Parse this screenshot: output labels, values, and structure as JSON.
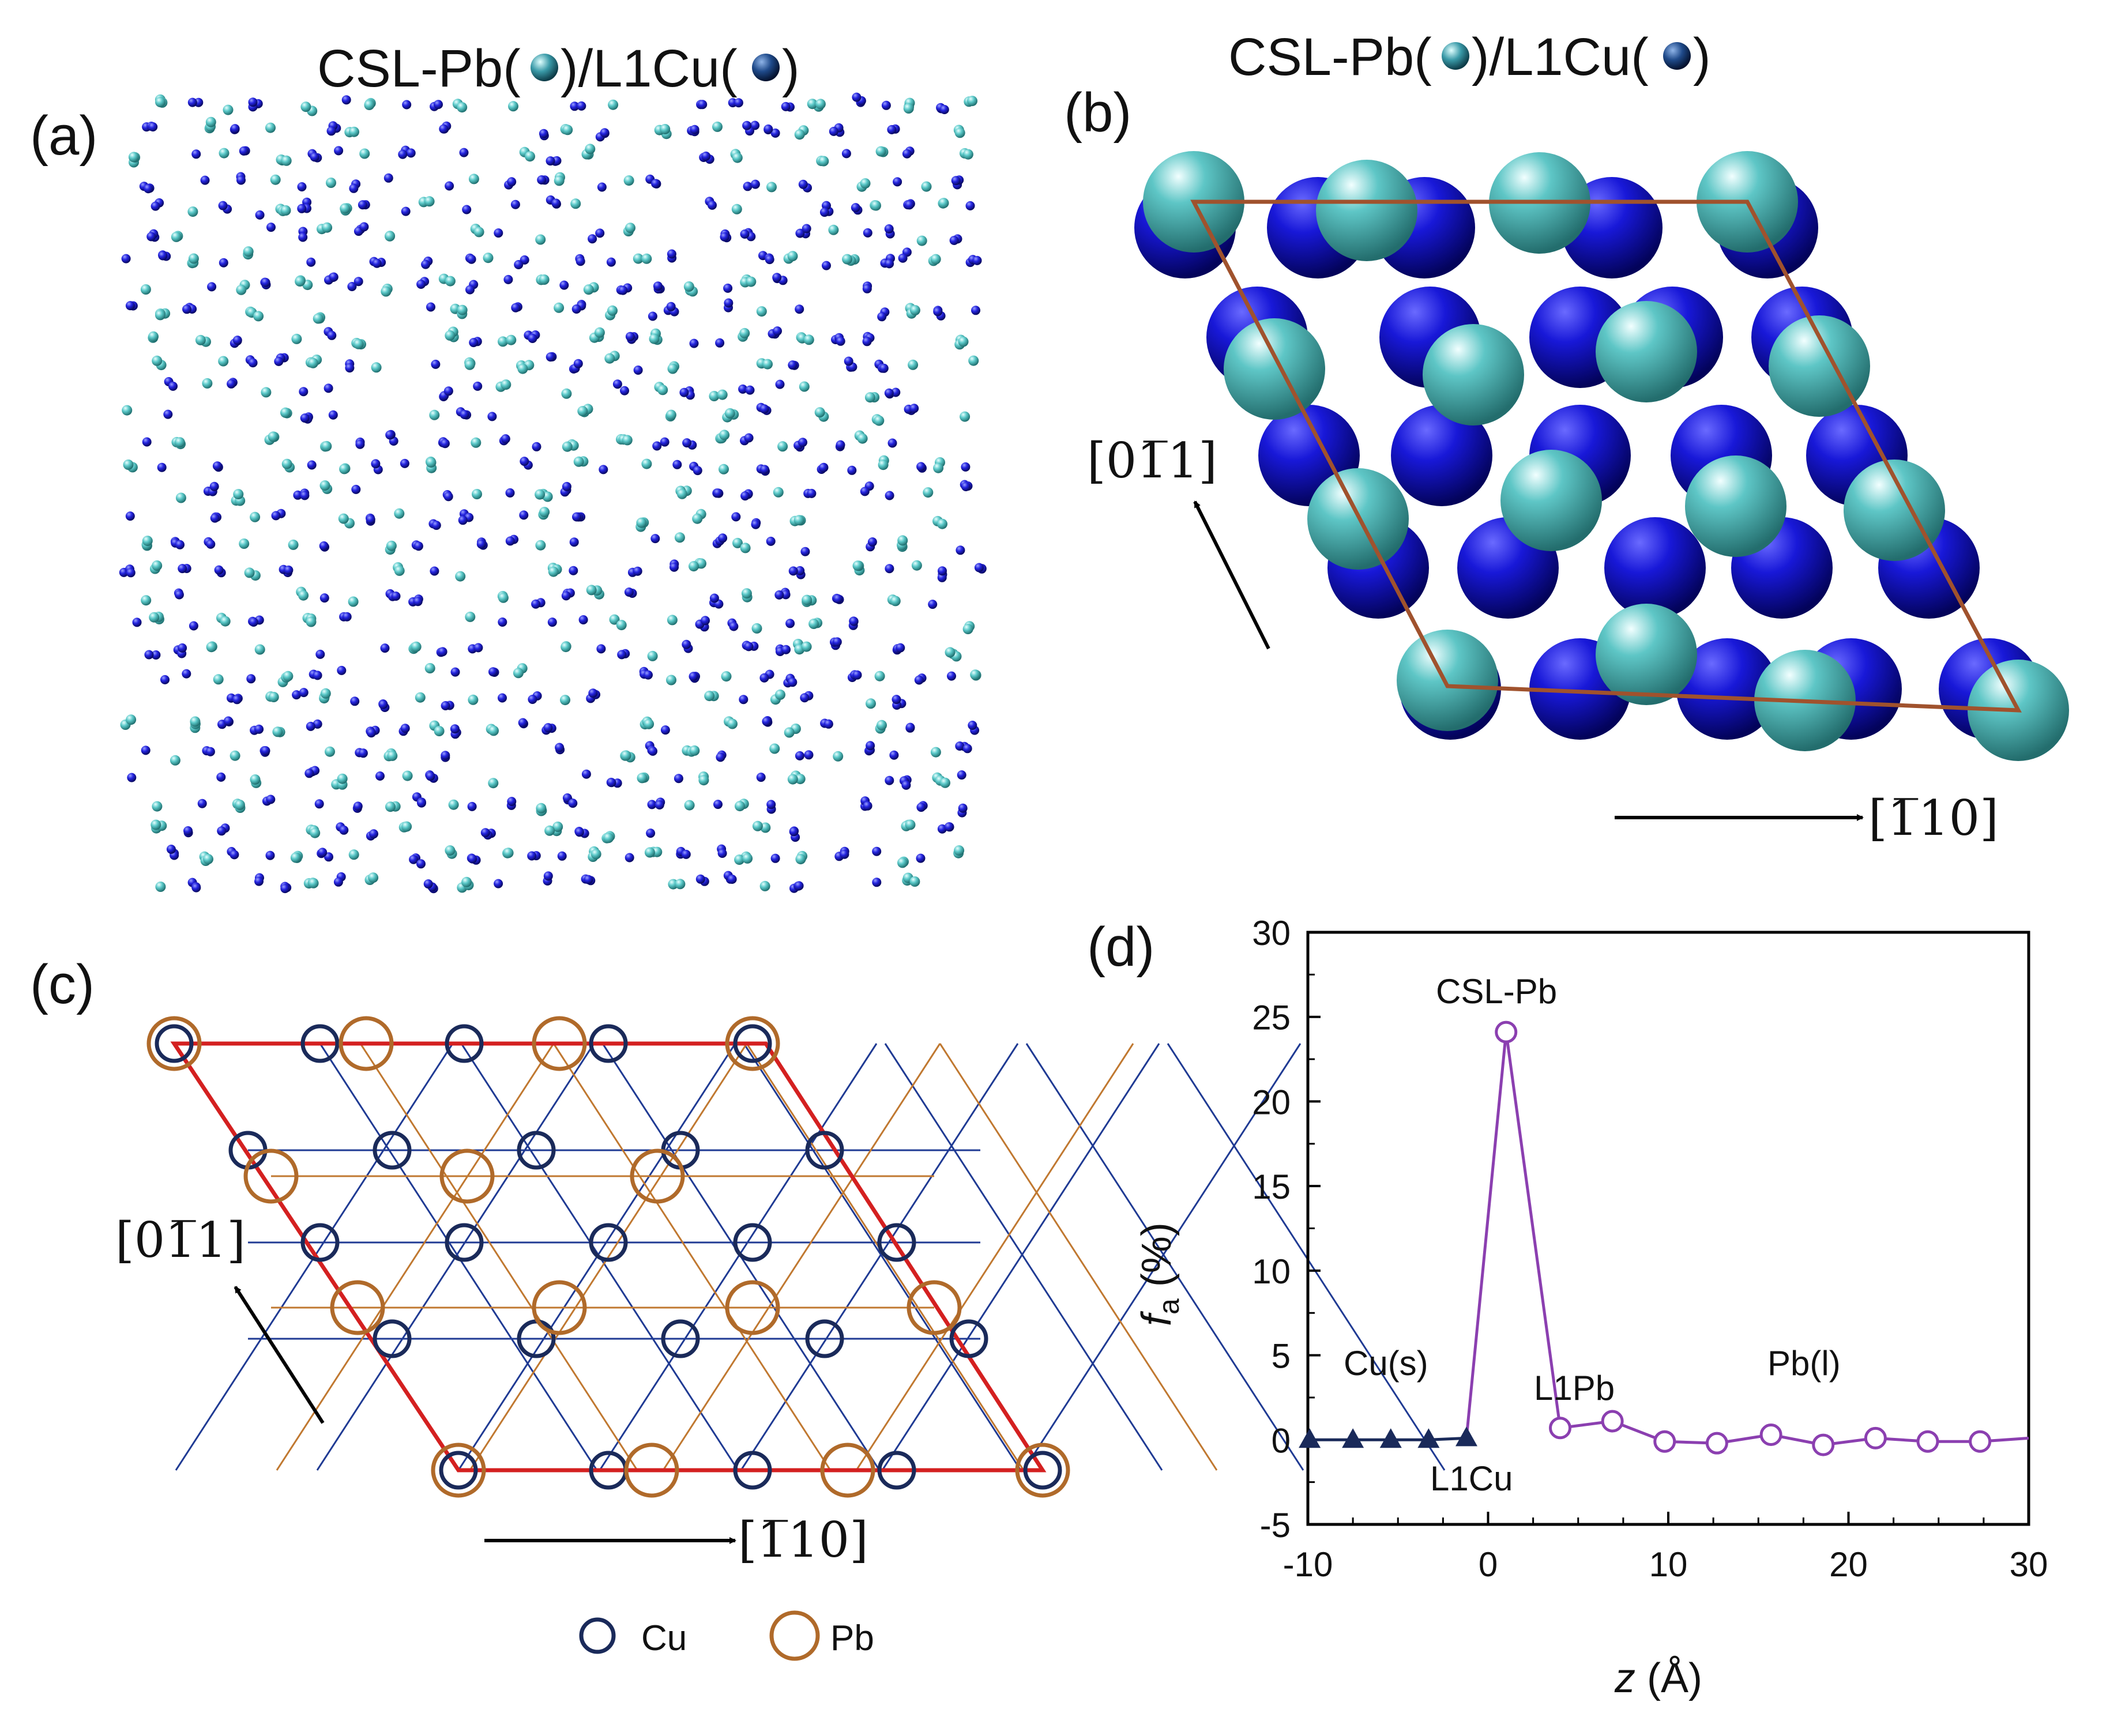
{
  "panel_a": {
    "letter": "(a)",
    "title_pre": "CSL-Pb(",
    "title_mid": ")/L1Cu(",
    "title_post": ")",
    "colors": {
      "pb": "#48c3c3",
      "cu": "#1a1ad0"
    }
  },
  "panel_b": {
    "letter": "(b)",
    "title_pre": "CSL-Pb(",
    "title_mid": ")/L1Cu(",
    "title_post": ")",
    "dir_vertical": "[01̅1]",
    "dir_horizontal": "[1̅10]",
    "colors": {
      "pb": "#4ab8b8",
      "cu": "#1515cc",
      "cell": "#a0522d"
    }
  },
  "panel_c": {
    "letter": "(c)",
    "dir_vertical": "[01̅1]",
    "dir_horizontal": "[1̅10]",
    "legend": [
      {
        "label": "Cu",
        "color": "#1a2a5a"
      },
      {
        "label": "Pb",
        "color": "#b06a2a"
      }
    ],
    "colors": {
      "cell": "#d42020",
      "cu_net": "#1f3a93",
      "pb_net": "#c07830"
    }
  },
  "panel_d": {
    "letter": "(d)",
    "annotations": {
      "csl": "CSL-Pb",
      "cus": "Cu(s)",
      "l1pb": "L1Pb",
      "pbl": "Pb(l)",
      "l1cu": "L1Cu"
    }
  },
  "chart_data": {
    "type": "line",
    "xlabel_italic": "z",
    "xlabel_rest": " (Å)",
    "ylabel_italic": "f",
    "ylabel_sub": "a",
    "ylabel_rest": " (%)",
    "xlim": [
      -10,
      30
    ],
    "ylim": [
      -5,
      30
    ],
    "xticks": [
      "-10",
      "0",
      "10",
      "20",
      "30"
    ],
    "yticks": [
      "-5",
      "0",
      "5",
      "10",
      "15",
      "20",
      "25",
      "30"
    ],
    "series": [
      {
        "marker": "triangle",
        "color": "#1a2a5a",
        "x": [
          -9.9,
          -7.5,
          -5.4,
          -3.3,
          -1.2
        ],
        "y": [
          0.0,
          0.0,
          0.0,
          0.0,
          0.1
        ]
      },
      {
        "marker": "open-circle",
        "color": "#8b3fb0",
        "x": [
          1.0,
          4.0,
          6.9,
          9.8,
          12.7,
          15.7,
          18.6,
          21.5,
          24.4,
          27.3,
          30.0
        ],
        "y": [
          24.1,
          0.7,
          1.1,
          -0.1,
          -0.2,
          0.3,
          -0.3,
          0.1,
          -0.1,
          -0.1,
          0.1
        ],
        "marker_count": 10
      }
    ],
    "connector": {
      "from": [
        -1.2,
        0.1
      ],
      "to": [
        1.0,
        24.1
      ]
    }
  }
}
